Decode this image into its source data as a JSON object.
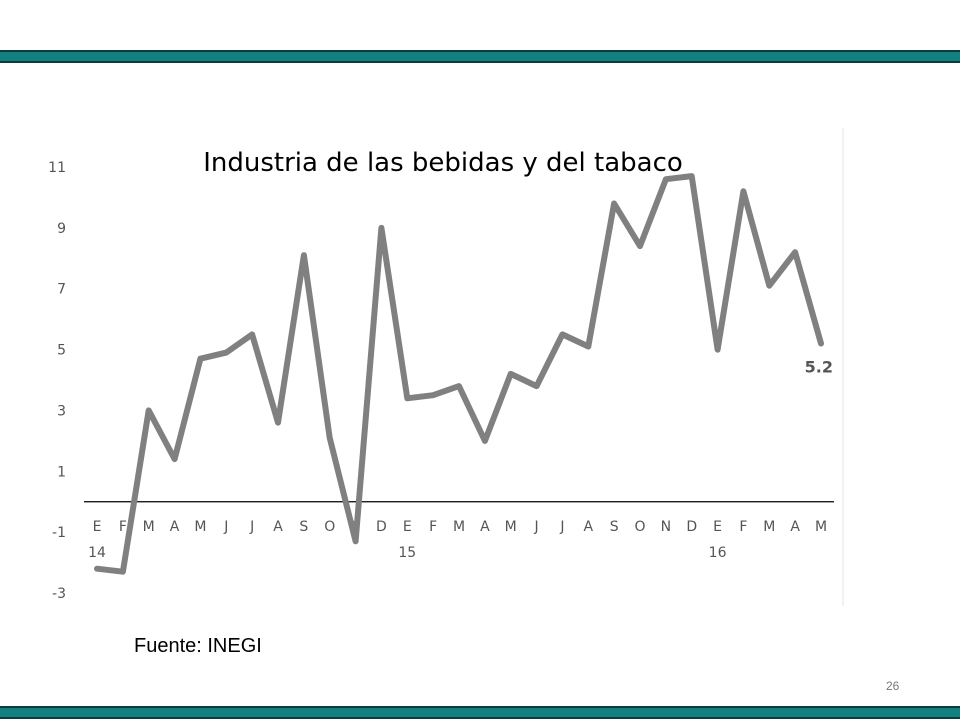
{
  "slide": {
    "source": "Fuente: INEGI",
    "page_number": "26",
    "band_color": "#147f7f",
    "band_border_color": "#0b3b40"
  },
  "chart_data": {
    "type": "line",
    "title": "Industria de las bebidas y del tabaco",
    "xlabel": "",
    "ylabel": "",
    "ylim": [
      -3,
      11
    ],
    "yticks": [
      11,
      9,
      7,
      5,
      3,
      1,
      -1,
      -3
    ],
    "categories": [
      "E",
      "F",
      "M",
      "A",
      "M",
      "J",
      "J",
      "A",
      "S",
      "O",
      "N",
      "D",
      "E",
      "F",
      "M",
      "A",
      "M",
      "J",
      "J",
      "A",
      "S",
      "O",
      "N",
      "D",
      "E",
      "F",
      "M",
      "A",
      "M"
    ],
    "year_labels": [
      {
        "index": 0,
        "label": "14"
      },
      {
        "index": 12,
        "label": "15"
      },
      {
        "index": 24,
        "label": "16"
      }
    ],
    "series": [
      {
        "color": "#808080",
        "values": [
          -2.2,
          -2.3,
          3.0,
          1.4,
          4.7,
          4.9,
          5.5,
          2.6,
          8.1,
          2.1,
          -1.3,
          9.0,
          3.4,
          3.5,
          3.8,
          2.0,
          4.2,
          3.8,
          5.5,
          5.1,
          9.8,
          8.4,
          10.6,
          10.7,
          5.0,
          10.2,
          7.1,
          8.2,
          5.2
        ]
      }
    ],
    "end_label": "5.2",
    "grid": false
  }
}
